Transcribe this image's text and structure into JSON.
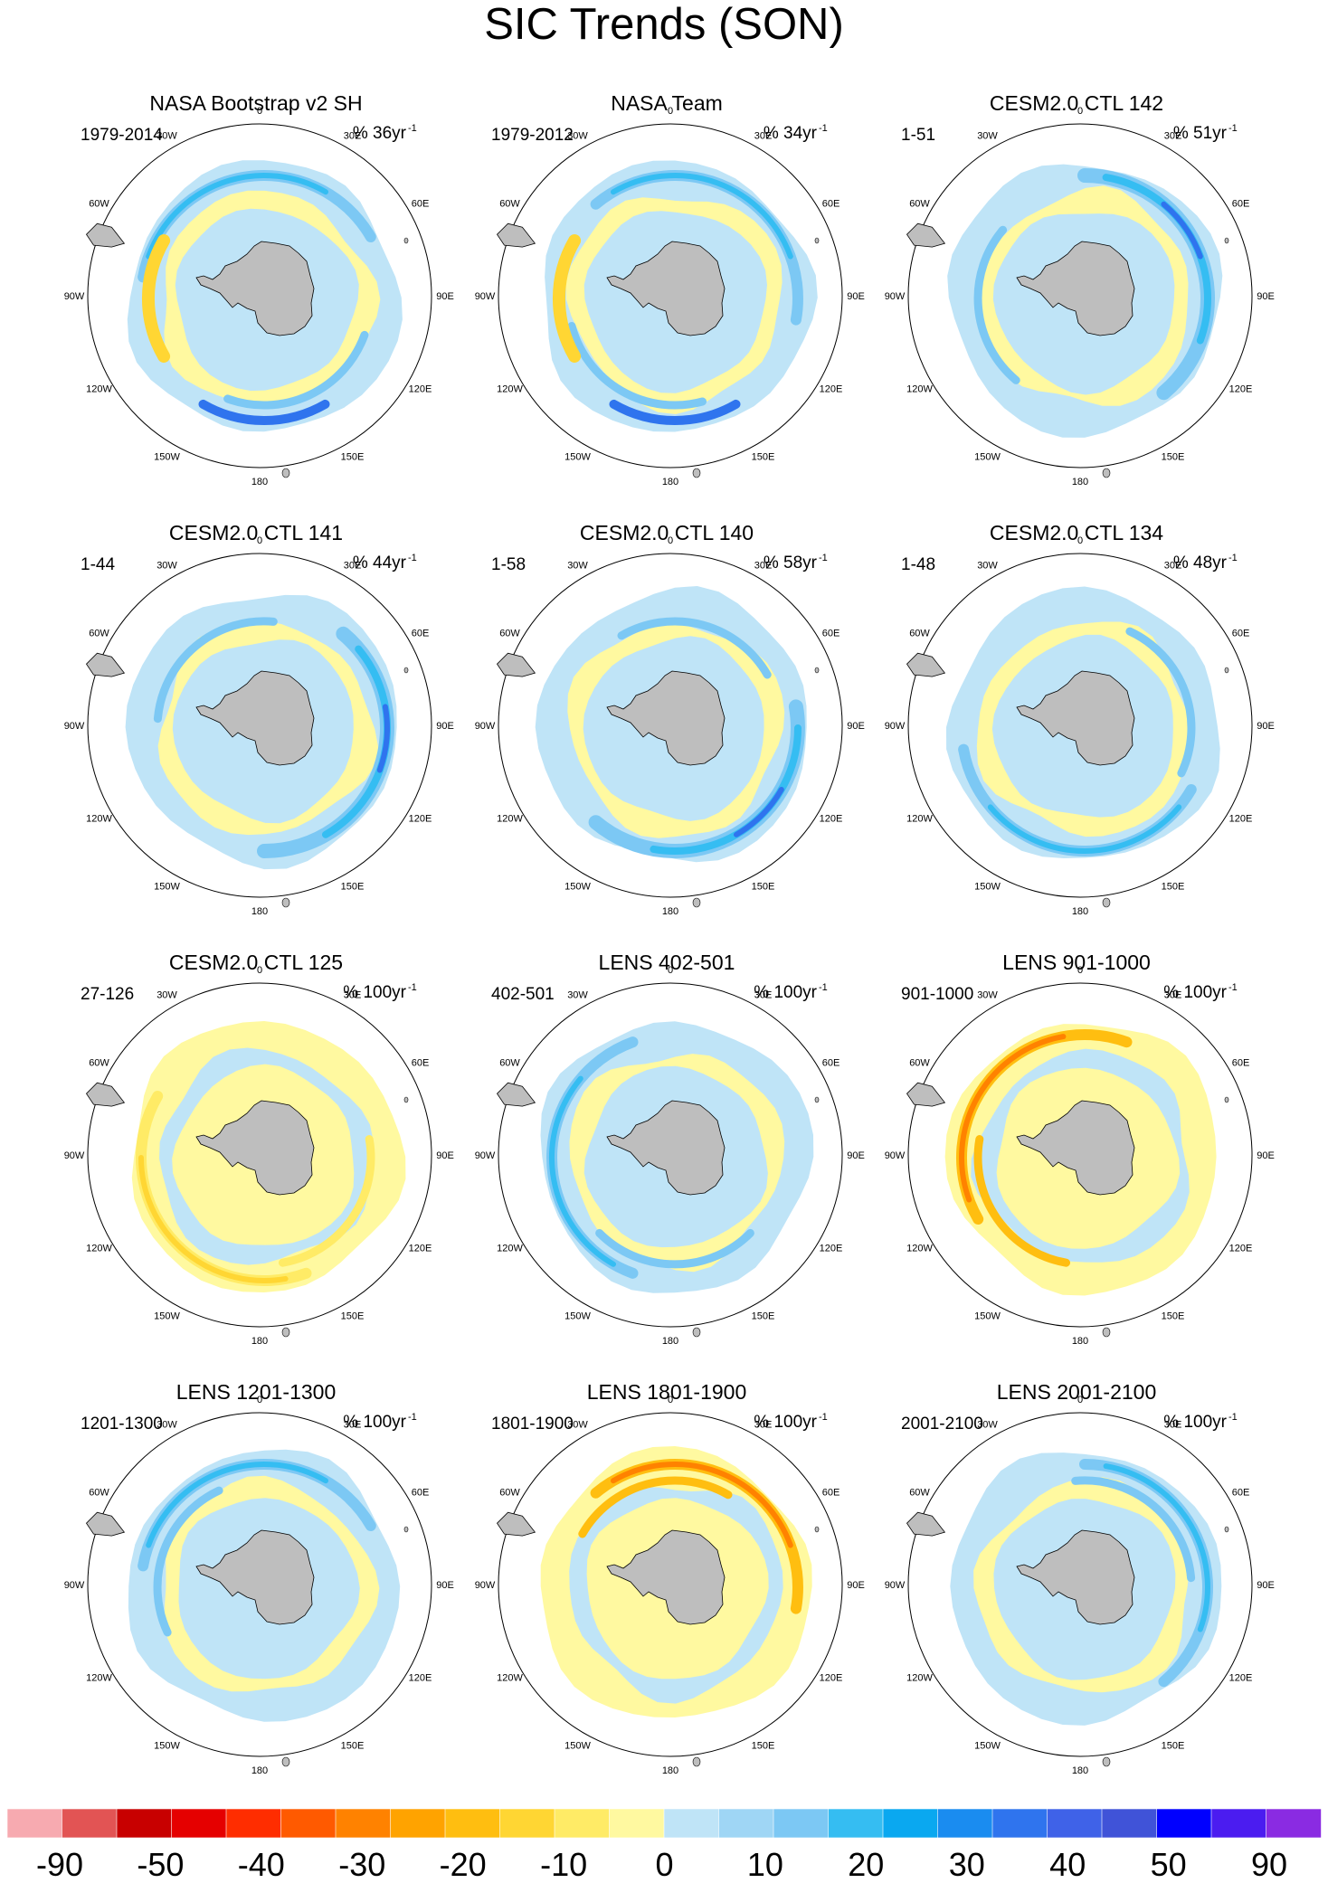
{
  "figure": {
    "title": "SIC Trends (SON)"
  },
  "chart_data": {
    "type": "polar-contour-map",
    "title": "SIC Trends (SON)",
    "projection": "South Polar Stereographic",
    "longitude_labels": [
      "0",
      "30E",
      "60E",
      "90E",
      "120E",
      "150E",
      "180",
      "150W",
      "120W",
      "90W",
      "60W",
      "30W"
    ],
    "panels": [
      {
        "title": "NASA Bootstrap v2 SH",
        "period": "1979-2014",
        "units_prefix": "% 36yr",
        "units_exp": "-1",
        "pattern": "obs"
      },
      {
        "title": "NASA Team",
        "period": "1979-2012",
        "units_prefix": "% 34yr",
        "units_exp": "-1",
        "pattern": "obs"
      },
      {
        "title": "CESM2.0 CTL 142",
        "period": "1-51",
        "units_prefix": "% 51yr",
        "units_exp": "-1",
        "pattern": "strong-blue"
      },
      {
        "title": "CESM2.0 CTL 141",
        "period": "1-44",
        "units_prefix": "% 44yr",
        "units_exp": "-1",
        "pattern": "strong-blue"
      },
      {
        "title": "CESM2.0 CTL 140",
        "period": "1-58",
        "units_prefix": "% 58yr",
        "units_exp": "-1",
        "pattern": "strong-blue"
      },
      {
        "title": "CESM2.0 CTL 134",
        "period": "1-48",
        "units_prefix": "% 48yr",
        "units_exp": "-1",
        "pattern": "mixed"
      },
      {
        "title": "CESM2.0 CTL 125",
        "period": "27-126",
        "units_prefix": "% 100yr",
        "units_exp": "-1",
        "pattern": "yellow"
      },
      {
        "title": "LENS 402-501",
        "period": "402-501",
        "units_prefix": "% 100yr",
        "units_exp": "-1",
        "pattern": "mixed"
      },
      {
        "title": "LENS 901-1000",
        "period": "901-1000",
        "units_prefix": "% 100yr",
        "units_exp": "-1",
        "pattern": "orange"
      },
      {
        "title": "LENS 1201-1300",
        "period": "1201-1300",
        "units_prefix": "% 100yr",
        "units_exp": "-1",
        "pattern": "mixed"
      },
      {
        "title": "LENS 1801-1900",
        "period": "1801-1900",
        "units_prefix": "% 100yr",
        "units_exp": "-1",
        "pattern": "orange"
      },
      {
        "title": "LENS 2001-2100",
        "period": "2001-2100",
        "units_prefix": "% 100yr",
        "units_exp": "-1",
        "pattern": "mixed"
      }
    ],
    "colorbar": {
      "labels": [
        "-90",
        "-50",
        "-40",
        "-30",
        "-20",
        "-10",
        "0",
        "10",
        "20",
        "30",
        "40",
        "50",
        "90"
      ],
      "colors": [
        "#f7aab0",
        "#e25454",
        "#c80000",
        "#e50000",
        "#ff2d00",
        "#ff5a00",
        "#ff8200",
        "#ffa300",
        "#ffbe10",
        "#ffd633",
        "#ffeb66",
        "#fff9a0",
        "#bfe4f7",
        "#9fd6f5",
        "#7cc8f4",
        "#35bdf2",
        "#0aa8f0",
        "#1a8cf0",
        "#2f74ee",
        "#3f62e8",
        "#4053d8",
        "#0000ff",
        "#4b1cf0",
        "#8a2be2"
      ]
    },
    "land_color": "#bebebe",
    "ocean_color": "#ffffff"
  }
}
